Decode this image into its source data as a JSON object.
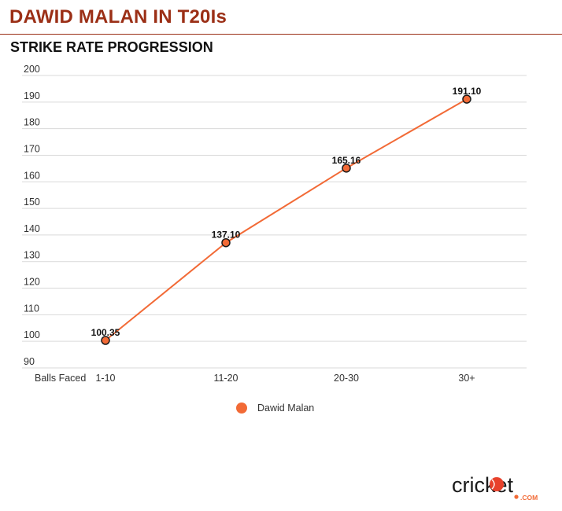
{
  "header": {
    "title": "DAWID MALAN IN T20Is",
    "subtitle": "STRIKE RATE PROGRESSION"
  },
  "colors": {
    "title": "#9b2f16",
    "series": "#f26a36",
    "marker_stroke": "#1a1a1a",
    "grid": "#d9d9d9"
  },
  "chart_data": {
    "type": "line",
    "xlabel": "Balls Faced",
    "categories": [
      "1-10",
      "11-20",
      "20-30",
      "30+"
    ],
    "series": [
      {
        "name": "Dawid Malan",
        "values": [
          100.35,
          137.1,
          165.16,
          191.1
        ],
        "labels": [
          "100.35",
          "137.10",
          "165.16",
          "191.10"
        ]
      }
    ],
    "ylim": [
      90,
      200
    ],
    "yticks": [
      90,
      100,
      110,
      120,
      130,
      140,
      150,
      160,
      170,
      180,
      190,
      200
    ],
    "grid": true,
    "legend": "bottom-center"
  },
  "brand": {
    "logo_text": "cricket",
    "logo_sub": ".COM",
    "logo_icon": "cricket-ball-icon"
  }
}
